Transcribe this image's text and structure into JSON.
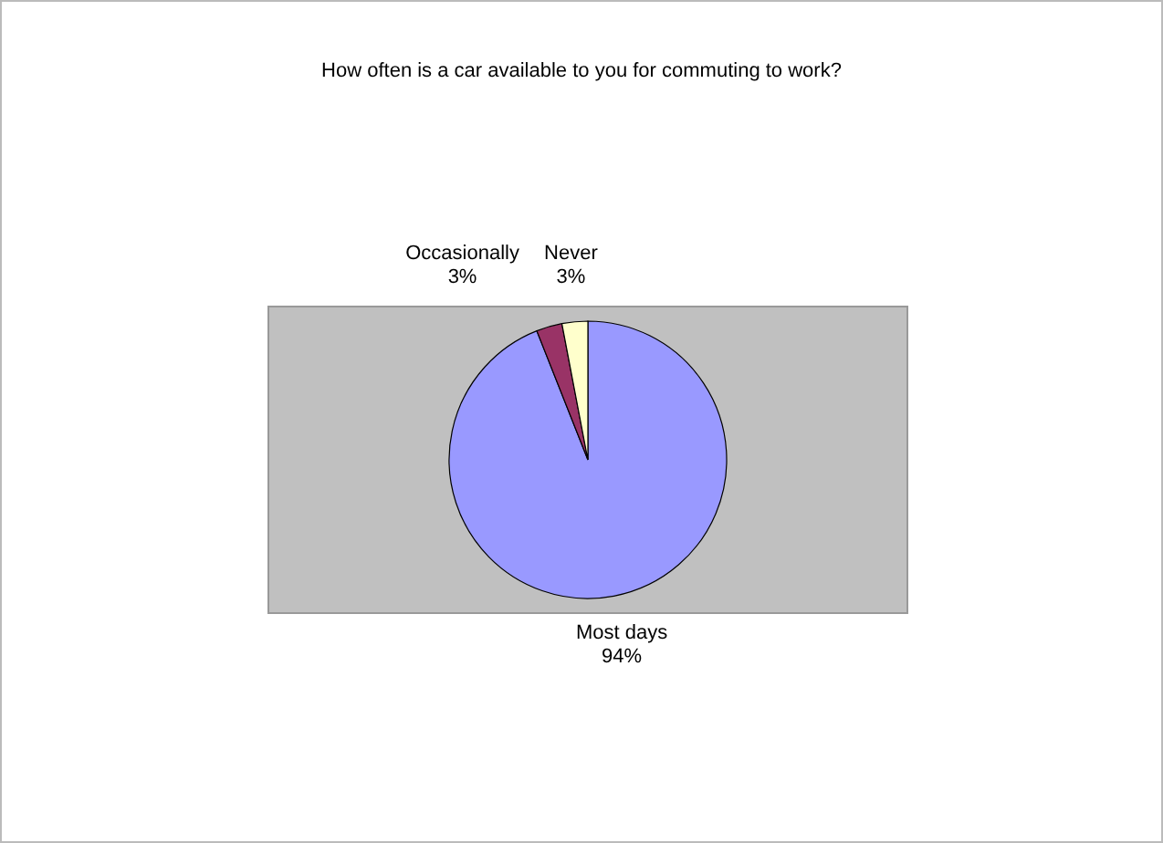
{
  "chart_data": {
    "type": "pie",
    "title": "How often is a car available to you for commuting to work?",
    "categories": [
      "Most days",
      "Occasionally",
      "Never"
    ],
    "values": [
      94,
      3,
      3
    ],
    "colors": [
      "#9999ff",
      "#993366",
      "#ffffcc"
    ],
    "value_labels": [
      "94%",
      "3%",
      "3%"
    ]
  }
}
